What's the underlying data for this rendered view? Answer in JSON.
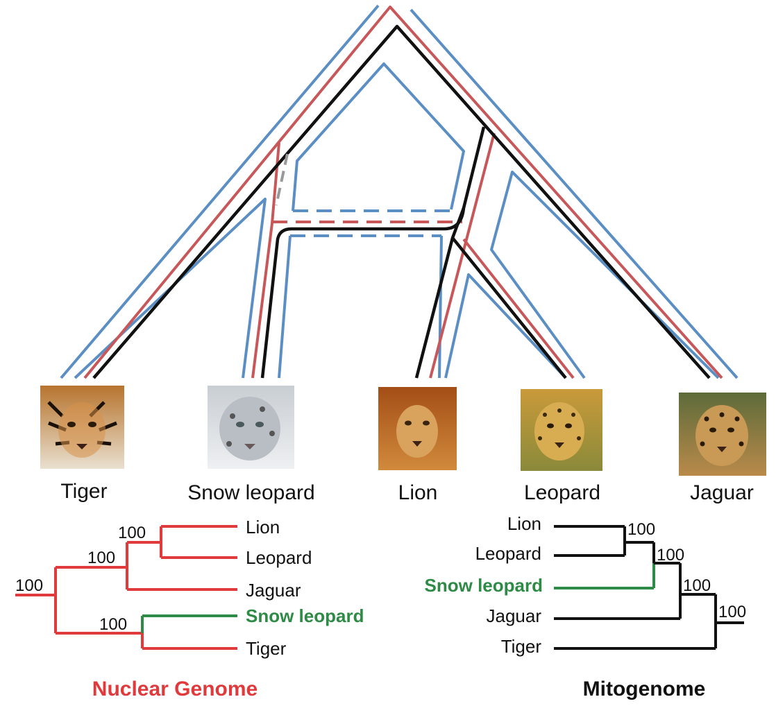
{
  "colors": {
    "blue": "#5b8fc4",
    "red": "#c8575a",
    "black": "#111111",
    "grey": "#999999",
    "nuclear": "#e03a3c",
    "green": "#2e8b45"
  },
  "species": [
    {
      "label": "Tiger",
      "icon": "tiger-photo"
    },
    {
      "label": "Snow leopard",
      "icon": "snow-leopard-photo"
    },
    {
      "label": "Lion",
      "icon": "lion-photo"
    },
    {
      "label": "Leopard",
      "icon": "leopard-photo"
    },
    {
      "label": "Jaguar",
      "icon": "jaguar-photo"
    }
  ],
  "nuclear_tree": {
    "caption": "Nuclear Genome",
    "tips": [
      "Lion",
      "Leopard",
      "Jaguar",
      "Snow leopard",
      "Tiger"
    ],
    "bootstrap": [
      "100",
      "100",
      "100",
      "100"
    ]
  },
  "mito_tree": {
    "caption": "Mitogenome",
    "tips": [
      "Lion",
      "Leopard",
      "Snow leopard",
      "Jaguar",
      "Tiger"
    ],
    "bootstrap": [
      "100",
      "100",
      "100",
      "100"
    ]
  }
}
